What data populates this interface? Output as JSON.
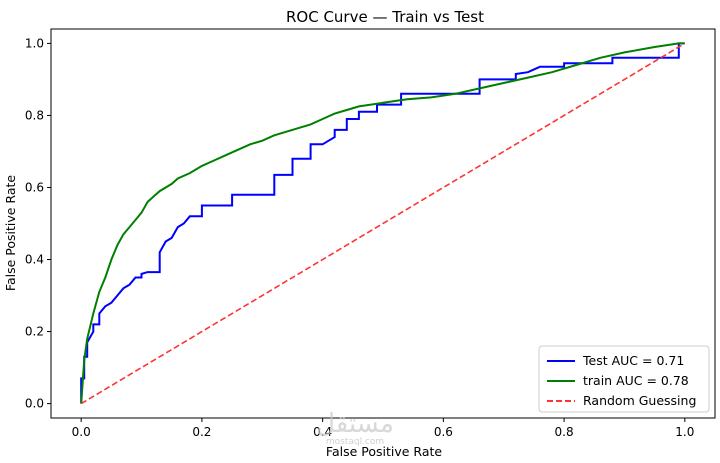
{
  "chart_data": {
    "type": "line",
    "title": "ROC Curve — Train vs Test",
    "xlabel": "False Positive Rate",
    "ylabel": "False Positive Rate",
    "xlim": [
      -0.05,
      1.05
    ],
    "ylim": [
      -0.04,
      1.04
    ],
    "xticks": [
      "0.0",
      "0.2",
      "0.4",
      "0.6",
      "0.8",
      "1.0"
    ],
    "yticks": [
      "0.0",
      "0.2",
      "0.4",
      "0.6",
      "0.8",
      "1.0"
    ],
    "grid": false,
    "legend_position": "bottom-right",
    "series": [
      {
        "name": "Test  AUC = 0.71",
        "color": "#0000ff",
        "style": "solid",
        "x": [
          0.0,
          0.0,
          0.005,
          0.005,
          0.01,
          0.01,
          0.02,
          0.02,
          0.03,
          0.03,
          0.04,
          0.05,
          0.06,
          0.07,
          0.08,
          0.09,
          0.1,
          0.1,
          0.11,
          0.13,
          0.13,
          0.14,
          0.15,
          0.16,
          0.17,
          0.18,
          0.2,
          0.2,
          0.25,
          0.25,
          0.32,
          0.32,
          0.35,
          0.35,
          0.38,
          0.38,
          0.4,
          0.42,
          0.42,
          0.44,
          0.44,
          0.46,
          0.46,
          0.49,
          0.49,
          0.53,
          0.53,
          0.66,
          0.66,
          0.72,
          0.72,
          0.74,
          0.76,
          0.8,
          0.8,
          0.88,
          0.88,
          0.99,
          0.99,
          1.0
        ],
        "y": [
          0.0,
          0.07,
          0.07,
          0.13,
          0.13,
          0.17,
          0.2,
          0.22,
          0.22,
          0.25,
          0.27,
          0.28,
          0.3,
          0.32,
          0.33,
          0.35,
          0.35,
          0.36,
          0.365,
          0.365,
          0.42,
          0.45,
          0.46,
          0.49,
          0.5,
          0.52,
          0.52,
          0.55,
          0.55,
          0.58,
          0.58,
          0.635,
          0.635,
          0.68,
          0.68,
          0.72,
          0.72,
          0.74,
          0.76,
          0.76,
          0.79,
          0.79,
          0.81,
          0.81,
          0.83,
          0.83,
          0.86,
          0.86,
          0.9,
          0.9,
          0.915,
          0.92,
          0.935,
          0.935,
          0.945,
          0.945,
          0.96,
          0.96,
          1.0,
          1.0
        ]
      },
      {
        "name": "train  AUC = 0.78",
        "color": "#008000",
        "style": "solid",
        "x": [
          0.0,
          0.005,
          0.01,
          0.02,
          0.03,
          0.04,
          0.05,
          0.06,
          0.07,
          0.08,
          0.09,
          0.1,
          0.11,
          0.12,
          0.13,
          0.14,
          0.15,
          0.16,
          0.18,
          0.2,
          0.22,
          0.24,
          0.26,
          0.28,
          0.3,
          0.32,
          0.34,
          0.36,
          0.38,
          0.4,
          0.42,
          0.44,
          0.46,
          0.5,
          0.54,
          0.58,
          0.62,
          0.66,
          0.7,
          0.74,
          0.78,
          0.82,
          0.86,
          0.9,
          0.95,
          0.99,
          1.0
        ],
        "y": [
          0.0,
          0.12,
          0.18,
          0.25,
          0.31,
          0.35,
          0.4,
          0.44,
          0.47,
          0.49,
          0.51,
          0.53,
          0.56,
          0.575,
          0.59,
          0.6,
          0.61,
          0.625,
          0.64,
          0.66,
          0.675,
          0.69,
          0.705,
          0.72,
          0.73,
          0.745,
          0.755,
          0.765,
          0.775,
          0.79,
          0.805,
          0.815,
          0.825,
          0.835,
          0.845,
          0.85,
          0.86,
          0.875,
          0.89,
          0.905,
          0.92,
          0.94,
          0.96,
          0.975,
          0.99,
          1.0,
          1.0
        ]
      },
      {
        "name": "Random Guessing",
        "color": "#ff3333",
        "style": "dashed",
        "x": [
          0.0,
          1.0
        ],
        "y": [
          0.0,
          1.0
        ]
      }
    ]
  },
  "watermark": {
    "text": "مستقل",
    "sub": "mostaql.com"
  }
}
